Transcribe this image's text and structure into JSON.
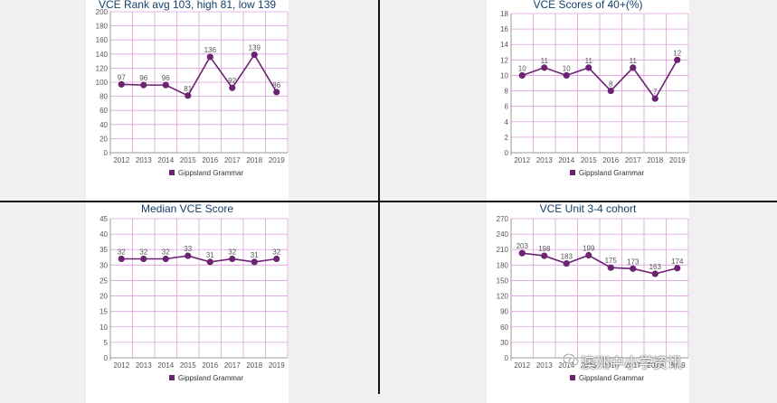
{
  "chart_data": [
    {
      "type": "line",
      "title": "VCE Rank avg 103, high 81, low 139",
      "categories": [
        "2012",
        "2013",
        "2014",
        "2015",
        "2016",
        "2017",
        "2018",
        "2019"
      ],
      "series": [
        {
          "name": "Gippsland Grammar",
          "values": [
            97,
            96,
            96,
            81,
            136,
            92,
            139,
            86
          ]
        }
      ],
      "ylim": [
        0,
        200
      ],
      "ystep": 20,
      "color": "#6b2372",
      "grid_color": "#dda0dd",
      "legend": "bottom",
      "grid": true
    },
    {
      "type": "line",
      "title": "VCE Scores of 40+(%)",
      "categories": [
        "2012",
        "2013",
        "2014",
        "2015",
        "2016",
        "2017",
        "2018",
        "2019"
      ],
      "series": [
        {
          "name": "Gippsland Grammar",
          "values": [
            10,
            11,
            10,
            11,
            8,
            11,
            7,
            12
          ]
        }
      ],
      "ylim": [
        0,
        18
      ],
      "ystep": 2,
      "color": "#6b2372",
      "grid_color": "#dda0dd",
      "legend": "bottom",
      "grid": true
    },
    {
      "type": "line",
      "title": "Median VCE Score",
      "categories": [
        "2012",
        "2013",
        "2014",
        "2015",
        "2016",
        "2017",
        "2018",
        "2019"
      ],
      "series": [
        {
          "name": "Gippsland Grammar",
          "values": [
            32,
            32,
            32,
            33,
            31,
            32,
            31,
            32
          ]
        }
      ],
      "ylim": [
        0,
        45
      ],
      "ystep": 5,
      "color": "#6b2372",
      "grid_color": "#dda0dd",
      "legend": "bottom",
      "grid": true
    },
    {
      "type": "line",
      "title": "VCE Unit 3-4 cohort",
      "categories": [
        "2012",
        "2013",
        "2014",
        "2015",
        "2016",
        "2017",
        "2018",
        "2019"
      ],
      "series": [
        {
          "name": "Gippsland Grammar",
          "values": [
            203,
            198,
            183,
            199,
            175,
            173,
            163,
            174
          ]
        }
      ],
      "ylim": [
        0,
        270
      ],
      "ystep": 30,
      "color": "#6b2372",
      "grid_color": "#dda0dd",
      "legend": "bottom",
      "grid": true
    }
  ],
  "watermark": {
    "text": "澳洲中小学资讯",
    "icon": "wechat-icon"
  }
}
